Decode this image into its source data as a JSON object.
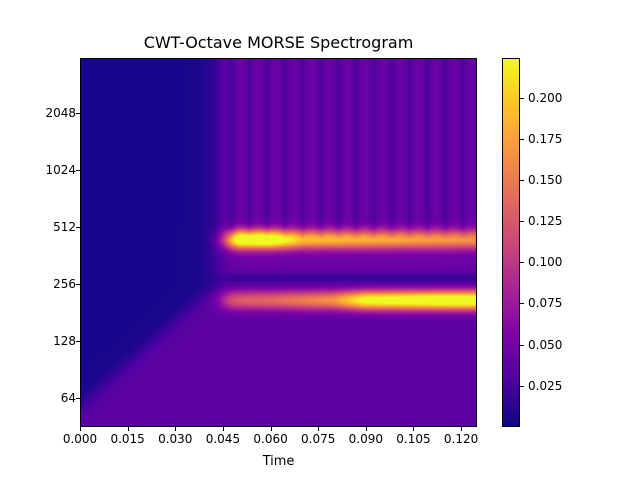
{
  "chart_data": {
    "type": "heatmap",
    "title": "CWT-Octave MORSE Spectrogram",
    "xlabel": "Time",
    "ylabel": "",
    "xlim": [
      0.0,
      0.125
    ],
    "ylim": [
      45,
      4000
    ],
    "yscale": "log2",
    "x_ticks": [
      "0.000",
      "0.015",
      "0.030",
      "0.045",
      "0.060",
      "0.075",
      "0.090",
      "0.105",
      "0.120"
    ],
    "y_ticks": [
      "64",
      "128",
      "256",
      "512",
      "1024",
      "2048"
    ],
    "colormap": "plasma",
    "colorbar": {
      "range": [
        0.0,
        0.224
      ],
      "ticks": [
        "0.025",
        "0.050",
        "0.075",
        "0.100",
        "0.125",
        "0.150",
        "0.175",
        "0.200"
      ]
    },
    "signal_onset_time": 0.043,
    "bands": [
      {
        "center_freq": 440,
        "start_time": 0.045,
        "profile": [
          [
            0.045,
            0.12
          ],
          [
            0.05,
            0.22
          ],
          [
            0.06,
            0.22
          ],
          [
            0.07,
            0.15
          ],
          [
            0.125,
            0.12
          ]
        ]
      },
      {
        "center_freq": 210,
        "start_time": 0.045,
        "profile": [
          [
            0.045,
            0.09
          ],
          [
            0.06,
            0.1
          ],
          [
            0.08,
            0.13
          ],
          [
            0.09,
            0.2
          ],
          [
            0.115,
            0.22
          ],
          [
            0.125,
            0.22
          ]
        ]
      }
    ],
    "background_level": 0.005,
    "post_onset_level": 0.04
  }
}
